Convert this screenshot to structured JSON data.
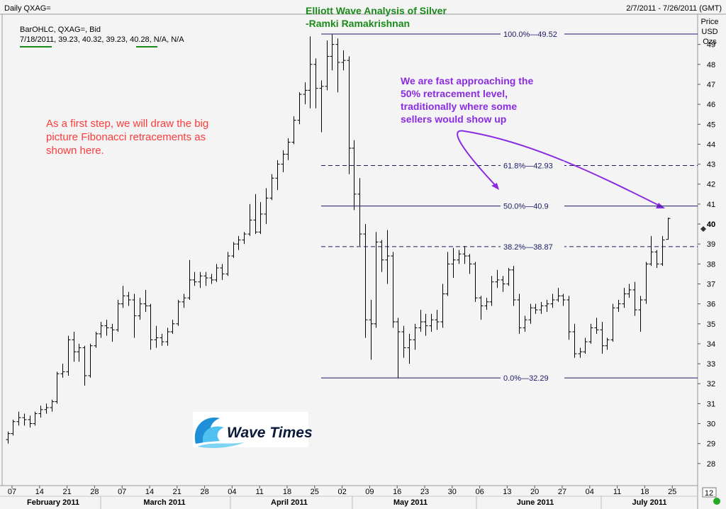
{
  "header": {
    "symbol_label": "Daily QXAG=",
    "date_range": "2/7/2011 - 7/26/2011 (GMT)",
    "study_line": "BarOHLC, QXAG=, Bid",
    "ohlc_line": "7/18/2011, 39.23, 40.32, 39.23, 40.28, N/A, N/A",
    "price_axis_title": [
      "Price",
      "USD",
      "Ozs"
    ],
    "interval_box": "12"
  },
  "title": {
    "line1": "Elliott Wave Analysis of Silver",
    "line2": "-Ramki Ramakrishnan"
  },
  "annotations": {
    "red_note": [
      "As a first step, we will draw the big",
      "picture Fibonacci retracements as",
      "shown here."
    ],
    "purple_note": [
      "We are fast approaching the",
      "50% retracement level,",
      "traditionally where some",
      "sellers would show up"
    ]
  },
  "logo": {
    "text": "Wave Times"
  },
  "colors": {
    "fib_line": "#1a1a66",
    "title": "#1a8a1a",
    "red_note": "#ff3b3b",
    "purple_note": "#8a2be2",
    "bars": "#000000",
    "status_dot": "#22aa22"
  },
  "chart_data": {
    "type": "ohlc",
    "ylim": [
      27,
      50
    ],
    "y_ticks": [
      28,
      29,
      30,
      31,
      32,
      33,
      34,
      35,
      36,
      37,
      38,
      39,
      40,
      41,
      42,
      43,
      44,
      45,
      46,
      47,
      48,
      49
    ],
    "x_ticks": [
      "07",
      "14",
      "21",
      "28",
      "07",
      "14",
      "21",
      "28",
      "04",
      "11",
      "18",
      "25",
      "02",
      "09",
      "16",
      "23",
      "30",
      "06",
      "13",
      "20",
      "27",
      "04",
      "11",
      "18",
      "25"
    ],
    "months": [
      "February 2011",
      "March 2011",
      "April 2011",
      "May 2011",
      "June 2011",
      "July 2011"
    ],
    "current_price": "40",
    "fib_levels": [
      {
        "label": "100.0%",
        "value": 49.52,
        "style": "solid"
      },
      {
        "label": "61.8%",
        "value": 42.93,
        "style": "dashed"
      },
      {
        "label": "50.0%",
        "value": 40.9,
        "style": "solid"
      },
      {
        "label": "38.2%",
        "value": 38.87,
        "style": "dashed"
      },
      {
        "label": "0.0%",
        "value": 32.29,
        "style": "solid"
      }
    ],
    "bars": [
      [
        29.2,
        29.6,
        29.0,
        29.5
      ],
      [
        29.5,
        30.2,
        29.4,
        30.1
      ],
      [
        30.1,
        30.6,
        29.9,
        30.3
      ],
      [
        30.3,
        30.5,
        29.9,
        30.2
      ],
      [
        30.2,
        30.4,
        29.8,
        30.0
      ],
      [
        30.0,
        30.6,
        29.9,
        30.5
      ],
      [
        30.5,
        30.9,
        30.3,
        30.7
      ],
      [
        30.7,
        31.0,
        30.5,
        30.8
      ],
      [
        30.8,
        31.2,
        30.6,
        31.1
      ],
      [
        31.1,
        32.6,
        31.0,
        32.5
      ],
      [
        32.5,
        33.0,
        32.3,
        32.6
      ],
      [
        32.6,
        34.4,
        32.4,
        34.2
      ],
      [
        34.2,
        34.6,
        33.1,
        33.6
      ],
      [
        33.6,
        34.0,
        33.1,
        33.8
      ],
      [
        33.8,
        33.9,
        31.9,
        32.4
      ],
      [
        32.4,
        34.0,
        32.3,
        33.9
      ],
      [
        33.9,
        34.6,
        33.8,
        34.5
      ],
      [
        34.5,
        35.1,
        34.3,
        34.9
      ],
      [
        34.9,
        35.2,
        34.4,
        34.8
      ],
      [
        34.8,
        35.0,
        34.1,
        34.7
      ],
      [
        34.7,
        36.2,
        34.6,
        36.0
      ],
      [
        36.0,
        36.9,
        35.8,
        36.4
      ],
      [
        36.4,
        36.6,
        35.9,
        36.2
      ],
      [
        36.2,
        36.5,
        34.3,
        35.4
      ],
      [
        35.4,
        36.3,
        35.2,
        36.0
      ],
      [
        36.0,
        36.7,
        35.6,
        35.9
      ],
      [
        35.9,
        36.0,
        33.7,
        34.2
      ],
      [
        34.2,
        34.9,
        33.8,
        34.3
      ],
      [
        34.3,
        34.5,
        33.9,
        34.1
      ],
      [
        34.1,
        34.8,
        33.9,
        34.6
      ],
      [
        34.6,
        35.2,
        34.5,
        35.0
      ],
      [
        35.0,
        36.2,
        34.9,
        36.1
      ],
      [
        36.1,
        36.5,
        35.8,
        36.3
      ],
      [
        36.3,
        38.2,
        36.2,
        37.2
      ],
      [
        37.2,
        37.6,
        36.9,
        37.1
      ],
      [
        37.1,
        37.6,
        36.8,
        37.4
      ],
      [
        37.4,
        37.6,
        36.9,
        37.3
      ],
      [
        37.3,
        37.5,
        37.0,
        37.2
      ],
      [
        37.2,
        38.0,
        37.1,
        37.8
      ],
      [
        37.8,
        38.0,
        37.2,
        37.5
      ],
      [
        37.5,
        38.6,
        37.4,
        38.4
      ],
      [
        38.4,
        39.1,
        38.3,
        39.0
      ],
      [
        39.0,
        39.4,
        38.7,
        39.2
      ],
      [
        39.2,
        39.6,
        39.0,
        39.5
      ],
      [
        39.5,
        41.0,
        39.4,
        40.2
      ],
      [
        40.2,
        41.5,
        39.5,
        39.6
      ],
      [
        39.6,
        41.1,
        39.5,
        40.5
      ],
      [
        40.5,
        41.8,
        40.0,
        41.3
      ],
      [
        41.3,
        42.5,
        41.2,
        42.3
      ],
      [
        42.3,
        43.2,
        41.7,
        43.0
      ],
      [
        43.0,
        43.7,
        42.6,
        43.5
      ],
      [
        43.5,
        44.3,
        43.2,
        44.1
      ],
      [
        44.1,
        45.4,
        44.0,
        45.2
      ],
      [
        45.2,
        46.6,
        45.0,
        46.5
      ],
      [
        46.5,
        47.1,
        46.0,
        46.7
      ],
      [
        46.7,
        49.4,
        45.8,
        48.0
      ],
      [
        48.0,
        48.3,
        45.8,
        46.8
      ],
      [
        46.8,
        47.2,
        44.6,
        46.9
      ],
      [
        46.9,
        49.2,
        46.7,
        48.4
      ],
      [
        48.4,
        49.5,
        47.7,
        49.0
      ],
      [
        49.0,
        49.3,
        46.6,
        48.1
      ],
      [
        48.1,
        48.7,
        47.7,
        48.2
      ],
      [
        48.2,
        48.4,
        42.5,
        43.8
      ],
      [
        43.8,
        44.2,
        40.7,
        41.5
      ],
      [
        41.5,
        42.3,
        38.9,
        39.5
      ],
      [
        39.5,
        40.0,
        34.3,
        35.2
      ],
      [
        35.2,
        36.2,
        33.2,
        35.0
      ],
      [
        35.0,
        39.6,
        34.8,
        39.1
      ],
      [
        39.1,
        39.2,
        37.6,
        38.2
      ],
      [
        38.2,
        39.7,
        37.0,
        38.4
      ],
      [
        38.4,
        38.6,
        34.8,
        35.1
      ],
      [
        35.1,
        35.3,
        32.29,
        34.6
      ],
      [
        34.6,
        34.9,
        33.3,
        33.8
      ],
      [
        33.8,
        34.5,
        33.0,
        34.2
      ],
      [
        34.2,
        35.0,
        33.7,
        34.8
      ],
      [
        34.8,
        35.7,
        34.6,
        35.1
      ],
      [
        35.1,
        35.5,
        34.4,
        34.9
      ],
      [
        34.9,
        35.5,
        34.6,
        35.2
      ],
      [
        35.2,
        35.7,
        34.7,
        35.1
      ],
      [
        35.1,
        37.0,
        34.8,
        36.5
      ],
      [
        36.5,
        38.6,
        36.4,
        38.0
      ],
      [
        38.0,
        38.8,
        37.3,
        38.2
      ],
      [
        38.2,
        38.7,
        38.0,
        38.5
      ],
      [
        38.5,
        38.9,
        38.0,
        38.4
      ],
      [
        38.4,
        38.5,
        37.5,
        38.0
      ],
      [
        38.0,
        38.1,
        36.1,
        36.3
      ],
      [
        36.3,
        36.4,
        35.2,
        35.9
      ],
      [
        35.9,
        36.3,
        35.7,
        36.1
      ],
      [
        36.1,
        37.4,
        35.9,
        37.1
      ],
      [
        37.1,
        37.7,
        36.8,
        37.2
      ],
      [
        37.2,
        37.4,
        36.6,
        37.0
      ],
      [
        37.0,
        37.8,
        36.9,
        37.7
      ],
      [
        37.7,
        37.9,
        35.9,
        36.2
      ],
      [
        36.2,
        36.5,
        34.5,
        34.8
      ],
      [
        34.8,
        35.4,
        34.6,
        35.2
      ],
      [
        35.2,
        36.0,
        35.0,
        35.8
      ],
      [
        35.8,
        36.0,
        35.5,
        35.7
      ],
      [
        35.7,
        36.1,
        35.5,
        35.9
      ],
      [
        35.9,
        36.2,
        35.6,
        36.0
      ],
      [
        36.0,
        36.5,
        35.8,
        36.2
      ],
      [
        36.2,
        36.8,
        36.1,
        36.4
      ],
      [
        36.4,
        36.5,
        35.9,
        36.2
      ],
      [
        36.2,
        36.4,
        34.2,
        34.6
      ],
      [
        34.6,
        35.0,
        33.3,
        33.5
      ],
      [
        33.5,
        33.8,
        33.3,
        33.6
      ],
      [
        33.6,
        34.3,
        33.5,
        34.1
      ],
      [
        34.1,
        35.0,
        34.0,
        34.8
      ],
      [
        34.8,
        35.3,
        34.5,
        34.7
      ],
      [
        34.7,
        35.1,
        33.5,
        33.9
      ],
      [
        33.9,
        34.3,
        33.7,
        34.2
      ],
      [
        34.2,
        36.0,
        34.1,
        35.8
      ],
      [
        35.8,
        36.2,
        35.6,
        36.0
      ],
      [
        36.0,
        36.8,
        35.8,
        36.5
      ],
      [
        36.5,
        37.0,
        36.3,
        36.7
      ],
      [
        36.7,
        37.1,
        35.4,
        35.7
      ],
      [
        35.7,
        36.4,
        34.6,
        36.2
      ],
      [
        36.2,
        38.1,
        36.0,
        38.0
      ],
      [
        38.0,
        39.4,
        37.9,
        38.6
      ],
      [
        38.6,
        38.7,
        37.8,
        38.0
      ],
      [
        38.0,
        39.4,
        37.9,
        39.2
      ],
      [
        39.23,
        40.32,
        39.23,
        40.28
      ]
    ]
  }
}
